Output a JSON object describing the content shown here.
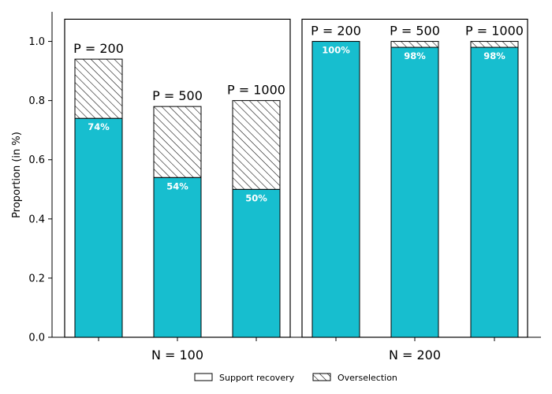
{
  "chart_data": {
    "type": "bar",
    "stacked": true,
    "ylabel": "Proportion (in %)",
    "ylim": [
      0,
      1.1
    ],
    "yticks": [
      0.0,
      0.2,
      0.4,
      0.6,
      0.8,
      1.0
    ],
    "ytick_labels": [
      "0.0",
      "0.2",
      "0.4",
      "0.6",
      "0.8",
      "1.0"
    ],
    "grid": false,
    "legend_position": "bottom-center",
    "colors": {
      "support": "#17becf",
      "overselection_fill": "#ffffff",
      "edge": "#000000"
    },
    "groups": [
      {
        "label": "N = 100",
        "bars": [
          {
            "p_label": "P = 200",
            "support_recovery": 0.74,
            "overselection": 0.2,
            "pct_label": "74%"
          },
          {
            "p_label": "P = 500",
            "support_recovery": 0.54,
            "overselection": 0.24,
            "pct_label": "54%"
          },
          {
            "p_label": "P = 1000",
            "support_recovery": 0.5,
            "overselection": 0.3,
            "pct_label": "50%"
          }
        ]
      },
      {
        "label": "N = 200",
        "bars": [
          {
            "p_label": "P = 200",
            "support_recovery": 1.0,
            "overselection": 0.0,
            "pct_label": "100%"
          },
          {
            "p_label": "P = 500",
            "support_recovery": 0.98,
            "overselection": 0.02,
            "pct_label": "98%"
          },
          {
            "p_label": "P = 1000",
            "support_recovery": 0.98,
            "overselection": 0.02,
            "pct_label": "98%"
          }
        ]
      }
    ],
    "series": [
      {
        "name": "Support recovery",
        "pattern": "solid"
      },
      {
        "name": "Overselection",
        "pattern": "hatch"
      }
    ]
  }
}
